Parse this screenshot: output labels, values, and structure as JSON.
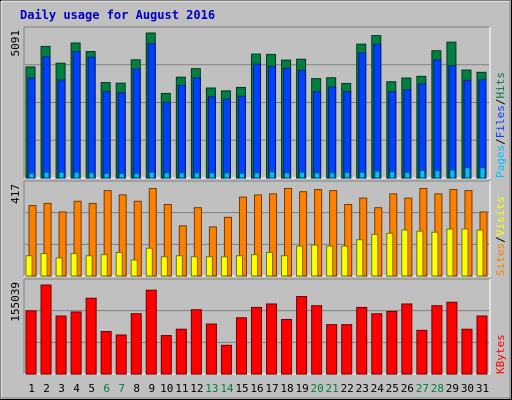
{
  "chart_data": {
    "type": "bar",
    "title": "Daily usage for August 2016",
    "categories": [
      "1",
      "2",
      "3",
      "4",
      "5",
      "6",
      "7",
      "8",
      "9",
      "10",
      "11",
      "12",
      "13",
      "14",
      "15",
      "16",
      "17",
      "18",
      "19",
      "20",
      "21",
      "22",
      "23",
      "24",
      "25",
      "26",
      "27",
      "28",
      "29",
      "30",
      "31"
    ],
    "weekend_days": [
      "6",
      "7",
      "13",
      "14",
      "20",
      "21",
      "27",
      "28"
    ],
    "colors": {
      "hits": "#008040",
      "files": "#0040ff",
      "pages": "#00c0ff",
      "visits": "#ffff00",
      "sites": "#ff8000",
      "kbytes": "#ff0000",
      "weekday_tick": "#000000",
      "weekend_tick": "#008040",
      "title": "#0000c8",
      "background": "#c0c0c0",
      "plot_background": "#c0c0c0",
      "gridline": "#808080"
    },
    "panels": [
      {
        "id": "hits-files-pages",
        "ylabel_max": "5091",
        "ymax": 5091,
        "legend": [
          {
            "key": "pages",
            "label": "Pages"
          },
          {
            "key": "sep1",
            "label": "/"
          },
          {
            "key": "files",
            "label": "Files"
          },
          {
            "key": "sep2",
            "label": "/"
          },
          {
            "key": "hits",
            "label": "Hits"
          }
        ],
        "series": [
          {
            "name": "Hits",
            "key": "hits",
            "values": [
              3900,
              4620,
              4030,
              4740,
              4440,
              3350,
              3330,
              4150,
              5091,
              2970,
              3540,
              3840,
              3160,
              3060,
              3180,
              4350,
              4340,
              4140,
              4170,
              3490,
              3520,
              3320,
              4700,
              5000,
              3380,
              3510,
              3570,
              4470,
              4770,
              3790,
              3710
            ]
          },
          {
            "name": "Files",
            "key": "files",
            "values": [
              3510,
              4260,
              3440,
              4440,
              4240,
              3030,
              3000,
              3830,
              4720,
              2660,
              3250,
              3520,
              2850,
              2770,
              2870,
              4000,
              3910,
              3850,
              3780,
              3030,
              3190,
              3030,
              4390,
              4700,
              3030,
              3100,
              3300,
              4150,
              3940,
              3430,
              3450
            ]
          },
          {
            "name": "Pages",
            "key": "pages",
            "values": [
              170,
              200,
              200,
              200,
              180,
              160,
              160,
              160,
              200,
              180,
              180,
              180,
              180,
              180,
              170,
              180,
              220,
              180,
              200,
              180,
              180,
              200,
              200,
              240,
              220,
              200,
              260,
              260,
              280,
              360,
              360
            ]
          }
        ]
      },
      {
        "id": "sites-visits",
        "ylabel_max": "417",
        "ymax": 417,
        "legend": [
          {
            "key": "sites",
            "label": "Sites"
          },
          {
            "key": "sep1",
            "label": "/"
          },
          {
            "key": "visits",
            "label": "Visits"
          }
        ],
        "series": [
          {
            "name": "Sites",
            "key": "sites",
            "values": [
              330,
              340,
              300,
              350,
              340,
              400,
              380,
              350,
              410,
              335,
              235,
              320,
              230,
              275,
              370,
              380,
              385,
              410,
              395,
              405,
              400,
              335,
              365,
              320,
              385,
              365,
              410,
              385,
              405,
              400,
              300
            ]
          },
          {
            "name": "Visits",
            "key": "visits",
            "values": [
              95,
              105,
              85,
              105,
              95,
              100,
              110,
              75,
              130,
              90,
              95,
              90,
              90,
              90,
              95,
              100,
              110,
              95,
              140,
              145,
              140,
              140,
              170,
              195,
              200,
              215,
              210,
              205,
              220,
              220,
              215
            ]
          }
        ]
      },
      {
        "id": "kbytes",
        "ylabel_max": "155039",
        "ymax": 155039,
        "legend": [
          {
            "key": "kbytes",
            "label": "KBytes"
          }
        ],
        "series": [
          {
            "name": "KBytes",
            "key": "kbytes",
            "values": [
              110000,
              155000,
              101000,
              108000,
              132000,
              74000,
              68000,
              105000,
              146000,
              67000,
              78000,
              112000,
              87000,
              50000,
              98000,
              116000,
              122000,
              95000,
              135000,
              119000,
              86000,
              86000,
              116000,
              105000,
              109000,
              122000,
              76000,
              119000,
              125000,
              78000,
              101000
            ]
          }
        ]
      }
    ]
  }
}
